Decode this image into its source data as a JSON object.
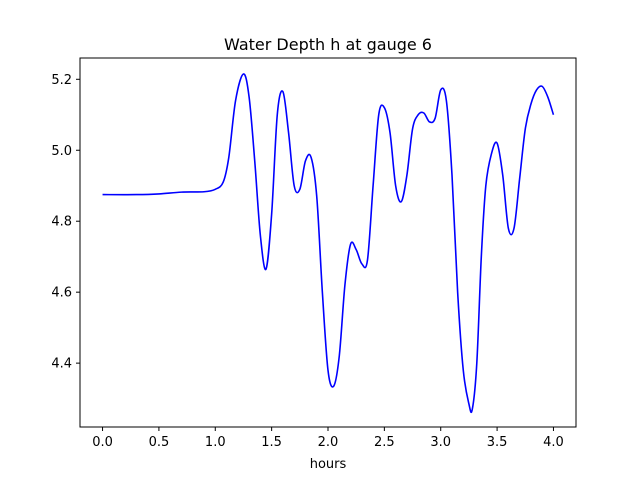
{
  "chart_data": {
    "type": "line",
    "title": "Water Depth h at gauge 6",
    "xlabel": "hours",
    "ylabel": "",
    "xlim": [
      -0.2,
      4.2
    ],
    "ylim": [
      4.22,
      5.26
    ],
    "xticks": [
      0.0,
      0.5,
      1.0,
      1.5,
      2.0,
      2.5,
      3.0,
      3.5,
      4.0
    ],
    "xtick_labels": [
      "0.0",
      "0.5",
      "1.0",
      "1.5",
      "2.0",
      "2.5",
      "3.0",
      "3.5",
      "4.0"
    ],
    "yticks": [
      4.4,
      4.6,
      4.8,
      5.0,
      5.2
    ],
    "ytick_labels": [
      "4.4",
      "4.6",
      "4.8",
      "5.0",
      "5.2"
    ],
    "grid": false,
    "series": [
      {
        "color": "#0000ff",
        "x": [
          0.0,
          0.3,
          0.5,
          0.7,
          0.9,
          1.0,
          1.07,
          1.12,
          1.18,
          1.25,
          1.3,
          1.35,
          1.4,
          1.45,
          1.5,
          1.55,
          1.6,
          1.65,
          1.7,
          1.75,
          1.8,
          1.85,
          1.9,
          1.95,
          2.0,
          2.05,
          2.1,
          2.15,
          2.2,
          2.25,
          2.3,
          2.35,
          2.4,
          2.45,
          2.5,
          2.55,
          2.6,
          2.65,
          2.7,
          2.75,
          2.8,
          2.85,
          2.9,
          2.95,
          3.0,
          3.05,
          3.1,
          3.15,
          3.2,
          3.25,
          3.28,
          3.32,
          3.36,
          3.4,
          3.45,
          3.5,
          3.55,
          3.6,
          3.65,
          3.7,
          3.75,
          3.8,
          3.85,
          3.9,
          3.95,
          4.0
        ],
        "y": [
          4.875,
          4.875,
          4.877,
          4.882,
          4.883,
          4.89,
          4.91,
          4.98,
          5.14,
          5.215,
          5.15,
          4.97,
          4.76,
          4.665,
          4.82,
          5.1,
          5.165,
          5.05,
          4.9,
          4.89,
          4.97,
          4.98,
          4.87,
          4.6,
          4.38,
          4.335,
          4.42,
          4.62,
          4.735,
          4.72,
          4.68,
          4.69,
          4.9,
          5.1,
          5.12,
          5.05,
          4.9,
          4.855,
          4.93,
          5.06,
          5.1,
          5.105,
          5.08,
          5.09,
          5.17,
          5.14,
          4.93,
          4.6,
          4.38,
          4.285,
          4.27,
          4.4,
          4.7,
          4.9,
          4.99,
          5.02,
          4.93,
          4.78,
          4.78,
          4.92,
          5.06,
          5.13,
          5.17,
          5.18,
          5.15,
          5.1
        ]
      }
    ]
  }
}
